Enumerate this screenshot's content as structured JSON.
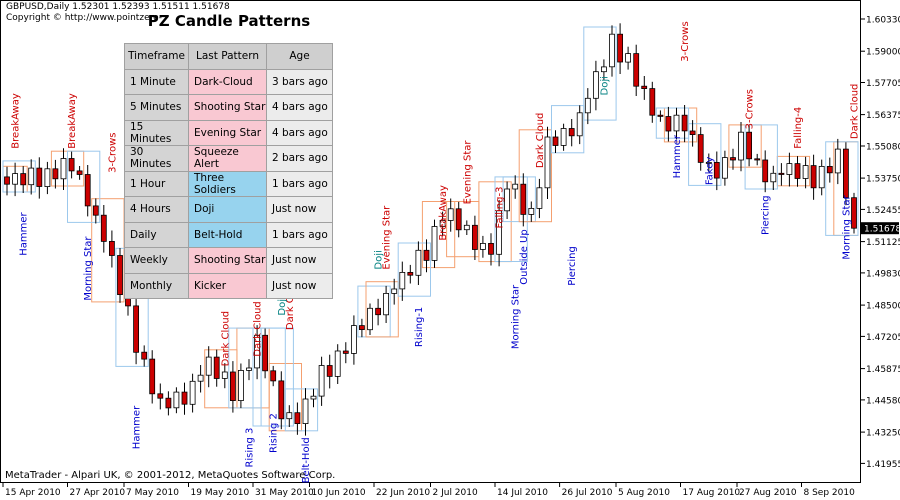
{
  "header": {
    "symbol_line": "GBPUSD,Daily  1.52301 1.52393 1.51511 1.51678",
    "copyright": "Copyright © http://www.pointzero-"
  },
  "panel": {
    "title": "PZ Candle Patterns",
    "columns": [
      "Timeframe",
      "Last Pattern",
      "Age"
    ],
    "rows": [
      {
        "timeframe": "1 Minute",
        "pattern": "Dark-Cloud",
        "age": "3 bars ago",
        "style": "pink"
      },
      {
        "timeframe": "5 Minutes",
        "pattern": "Shooting Star",
        "age": "4 bars ago",
        "style": "pink"
      },
      {
        "timeframe": "15 Minutes",
        "pattern": "Evening Star",
        "age": "4 bars ago",
        "style": "pink"
      },
      {
        "timeframe": "30 Minutes",
        "pattern": "Squeeze Alert",
        "age": "2 bars ago",
        "style": "pink"
      },
      {
        "timeframe": "1 Hour",
        "pattern": "Three Soldiers",
        "age": "1 bars ago",
        "style": "blue"
      },
      {
        "timeframe": "4 Hours",
        "pattern": "Doji",
        "age": "Just now",
        "style": "blue"
      },
      {
        "timeframe": "Daily",
        "pattern": "Belt-Hold",
        "age": "1 bars ago",
        "style": "blue"
      },
      {
        "timeframe": "Weekly",
        "pattern": "Shooting Star",
        "age": "Just now",
        "style": "pink"
      },
      {
        "timeframe": "Monthly",
        "pattern": "Kicker",
        "age": "Just now",
        "style": "pink"
      }
    ]
  },
  "footer": {
    "text": "MetaTrader - Alpari UK, © 2001-2012, MetaQuotes Software Corp."
  },
  "colors": {
    "bull": "#ffffff",
    "bear": "#cc0000",
    "bearish_label": "#cc0000",
    "bullish_label": "#0000cc",
    "neutral_label": "#008080",
    "current_price_bg": "#000000"
  },
  "chart_data": {
    "type": "candlestick",
    "symbol": "GBPUSD",
    "timeframe": "Daily",
    "ylim": [
      1.4135,
      1.6095
    ],
    "y_ticks": [
      "1.60330",
      "1.59000",
      "1.57705",
      "1.56375",
      "1.55080",
      "1.53750",
      "1.52455",
      "1.51125",
      "1.49830",
      "1.48500",
      "1.47205",
      "1.45875",
      "1.44580",
      "1.43250",
      "1.41955"
    ],
    "x_ticks": [
      "15 Apr 2010",
      "27 Apr 2010",
      "7 May 2010",
      "19 May 2010",
      "31 May 2010",
      "10 Jun 2010",
      "22 Jun 2010",
      "2 Jul 2010",
      "14 Jul 2010",
      "26 Jul 2010",
      "5 Aug 2010",
      "17 Aug 2010",
      "27 Aug 2010",
      "8 Sep 2010"
    ],
    "current_price": "1.51678",
    "close_path": [
      [
        0,
        1.535
      ],
      [
        8,
        1.542
      ],
      [
        10,
        1.53
      ],
      [
        13,
        1.502
      ],
      [
        16,
        1.47
      ],
      [
        19,
        1.442
      ],
      [
        22,
        1.448
      ],
      [
        25,
        1.46
      ],
      [
        28,
        1.45
      ],
      [
        31,
        1.468
      ],
      [
        34,
        1.442
      ],
      [
        36,
        1.436
      ],
      [
        39,
        1.456
      ],
      [
        43,
        1.472
      ],
      [
        46,
        1.485
      ],
      [
        49,
        1.495
      ],
      [
        52,
        1.508
      ],
      [
        54,
        1.523
      ],
      [
        57,
        1.515
      ],
      [
        60,
        1.506
      ],
      [
        62,
        1.535
      ],
      [
        65,
        1.523
      ],
      [
        67,
        1.55
      ],
      [
        69,
        1.555
      ],
      [
        71,
        1.563
      ],
      [
        73,
        1.578
      ],
      [
        75,
        1.593
      ],
      [
        77,
        1.587
      ],
      [
        79,
        1.57
      ],
      [
        81,
        1.56
      ],
      [
        83,
        1.562
      ],
      [
        85,
        1.552
      ],
      [
        87,
        1.54
      ],
      [
        89,
        1.544
      ],
      [
        91,
        1.552
      ],
      [
        93,
        1.542
      ],
      [
        95,
        1.538
      ],
      [
        97,
        1.54
      ],
      [
        100,
        1.538
      ],
      [
        103,
        1.545
      ],
      [
        105,
        1.5168
      ]
    ],
    "wiggle": [
      0,
      0.0035,
      -0.002,
      0.004,
      -0.0045,
      0.002,
      -0.003,
      0.0045,
      -0.0015,
      0.003,
      -0.004,
      0.0015
    ],
    "annotations": [
      {
        "text": "BreakAway",
        "bar": 1,
        "price": 1.548,
        "pos": "above",
        "kind": "bearish"
      },
      {
        "text": "BreakAway",
        "bar": 8,
        "price": 1.548,
        "pos": "above",
        "kind": "bearish"
      },
      {
        "text": "3-Crows",
        "bar": 13,
        "price": 1.538,
        "pos": "above",
        "kind": "bearish"
      },
      {
        "text": "Hammer",
        "bar": 2,
        "price": 1.525,
        "pos": "below",
        "kind": "bullish"
      },
      {
        "text": "Morning Star",
        "bar": 10,
        "price": 1.515,
        "pos": "below",
        "kind": "bullish"
      },
      {
        "text": "Hammer",
        "bar": 16,
        "price": 1.445,
        "pos": "below",
        "kind": "bullish"
      },
      {
        "text": "Dark Cloud",
        "bar": 27,
        "price": 1.458,
        "pos": "above",
        "kind": "bearish"
      },
      {
        "text": "Dark Cloud",
        "bar": 31,
        "price": 1.462,
        "pos": "above",
        "kind": "bearish"
      },
      {
        "text": "Dark Cloud",
        "bar": 35,
        "price": 1.473,
        "pos": "above",
        "kind": "bearish"
      },
      {
        "text": "Doji",
        "bar": 34,
        "price": 1.479,
        "pos": "above",
        "kind": "neutral"
      },
      {
        "text": "Rising 3",
        "bar": 30,
        "price": 1.436,
        "pos": "below",
        "kind": "bullish"
      },
      {
        "text": "Rising 2",
        "bar": 33,
        "price": 1.442,
        "pos": "below",
        "kind": "bullish"
      },
      {
        "text": "Belt-Hold",
        "bar": 37,
        "price": 1.432,
        "pos": "below",
        "kind": "bullish"
      },
      {
        "text": "Doji",
        "bar": 46,
        "price": 1.498,
        "pos": "above",
        "kind": "neutral"
      },
      {
        "text": "Evening Star",
        "bar": 47,
        "price": 1.498,
        "pos": "above",
        "kind": "bearish"
      },
      {
        "text": "BreakAway",
        "bar": 54,
        "price": 1.51,
        "pos": "above",
        "kind": "bearish"
      },
      {
        "text": "Evening Star",
        "bar": 57,
        "price": 1.525,
        "pos": "above",
        "kind": "bearish"
      },
      {
        "text": "Rising-1",
        "bar": 51,
        "price": 1.486,
        "pos": "below",
        "kind": "bullish"
      },
      {
        "text": "Falling-3",
        "bar": 61,
        "price": 1.515,
        "pos": "above",
        "kind": "bearish"
      },
      {
        "text": "Morning Star",
        "bar": 63,
        "price": 1.495,
        "pos": "below",
        "kind": "bullish"
      },
      {
        "text": "Outside Up",
        "bar": 64,
        "price": 1.518,
        "pos": "below",
        "kind": "bullish"
      },
      {
        "text": "Dark Cloud",
        "bar": 66,
        "price": 1.54,
        "pos": "above",
        "kind": "bearish"
      },
      {
        "text": "Piercing",
        "bar": 70,
        "price": 1.511,
        "pos": "below",
        "kind": "bullish"
      },
      {
        "text": "Doji",
        "bar": 74,
        "price": 1.57,
        "pos": "above",
        "kind": "neutral"
      },
      {
        "text": "3-Crows",
        "bar": 84,
        "price": 1.584,
        "pos": "above",
        "kind": "bearish"
      },
      {
        "text": "Hammer",
        "bar": 83,
        "price": 1.557,
        "pos": "below",
        "kind": "bullish"
      },
      {
        "text": "3-Crows",
        "bar": 92,
        "price": 1.556,
        "pos": "above",
        "kind": "bearish"
      },
      {
        "text": "Fakey",
        "bar": 87,
        "price": 1.548,
        "pos": "below",
        "kind": "bullish"
      },
      {
        "text": "Falling-4",
        "bar": 98,
        "price": 1.548,
        "pos": "above",
        "kind": "bearish"
      },
      {
        "text": "Piercing",
        "bar": 94,
        "price": 1.532,
        "pos": "below",
        "kind": "bullish"
      },
      {
        "text": "Dark Cloud",
        "bar": 105,
        "price": 1.552,
        "pos": "above",
        "kind": "bearish"
      },
      {
        "text": "Morning Star",
        "bar": 104,
        "price": 1.532,
        "pos": "below",
        "kind": "bullish"
      }
    ]
  }
}
